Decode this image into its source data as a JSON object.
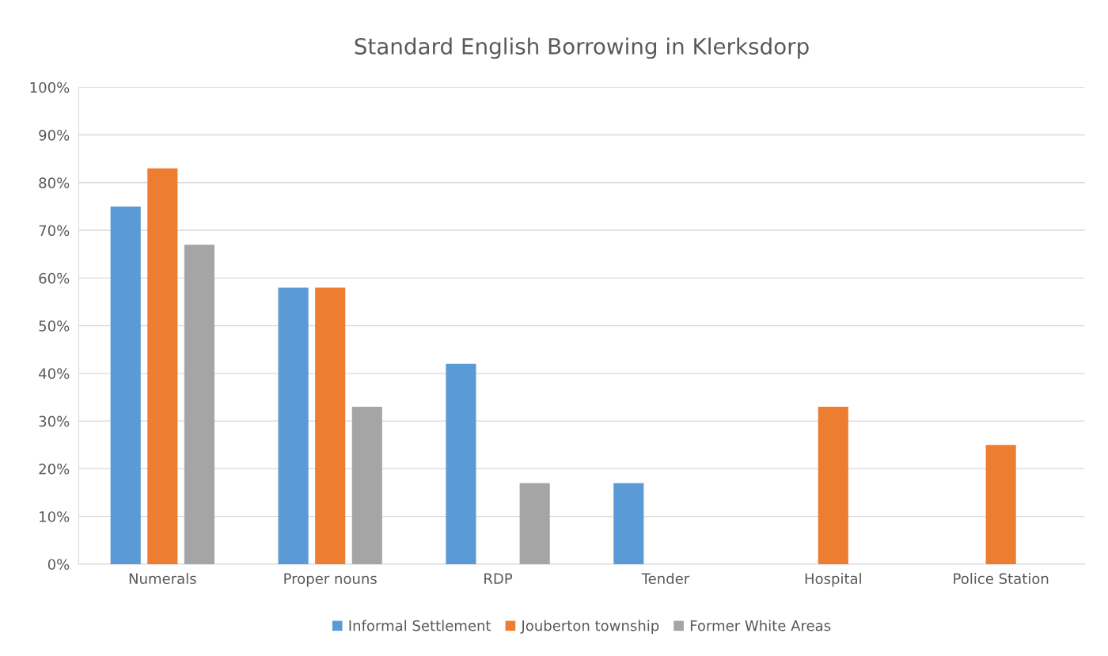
{
  "chart_data": {
    "type": "bar",
    "title": "Standard English Borrowing in Klerksdorp",
    "categories": [
      "Numerals",
      "Proper nouns",
      "RDP",
      "Tender",
      "Hospital",
      "Police Station"
    ],
    "series": [
      {
        "name": "Informal Settlement",
        "color": "#5b9bd5",
        "values": [
          75,
          58,
          42,
          17,
          0,
          0
        ]
      },
      {
        "name": "Jouberton township",
        "color": "#ed7d31",
        "values": [
          83,
          58,
          0,
          0,
          33,
          25
        ]
      },
      {
        "name": "Former White Areas",
        "color": "#a5a5a5",
        "values": [
          67,
          33,
          17,
          0,
          0,
          0
        ]
      }
    ],
    "ylim": [
      0,
      100
    ],
    "yticks": [
      {
        "value": 0,
        "label": "0%"
      },
      {
        "value": 10,
        "label": "10%"
      },
      {
        "value": 20,
        "label": "20%"
      },
      {
        "value": 30,
        "label": "30%"
      },
      {
        "value": 40,
        "label": "40%"
      },
      {
        "value": 50,
        "label": "50%"
      },
      {
        "value": 60,
        "label": "60%"
      },
      {
        "value": 70,
        "label": "70%"
      },
      {
        "value": 80,
        "label": "80%"
      },
      {
        "value": 90,
        "label": "90%"
      },
      {
        "value": 100,
        "label": "100%"
      }
    ],
    "grid": "y",
    "legend": "bottom"
  }
}
